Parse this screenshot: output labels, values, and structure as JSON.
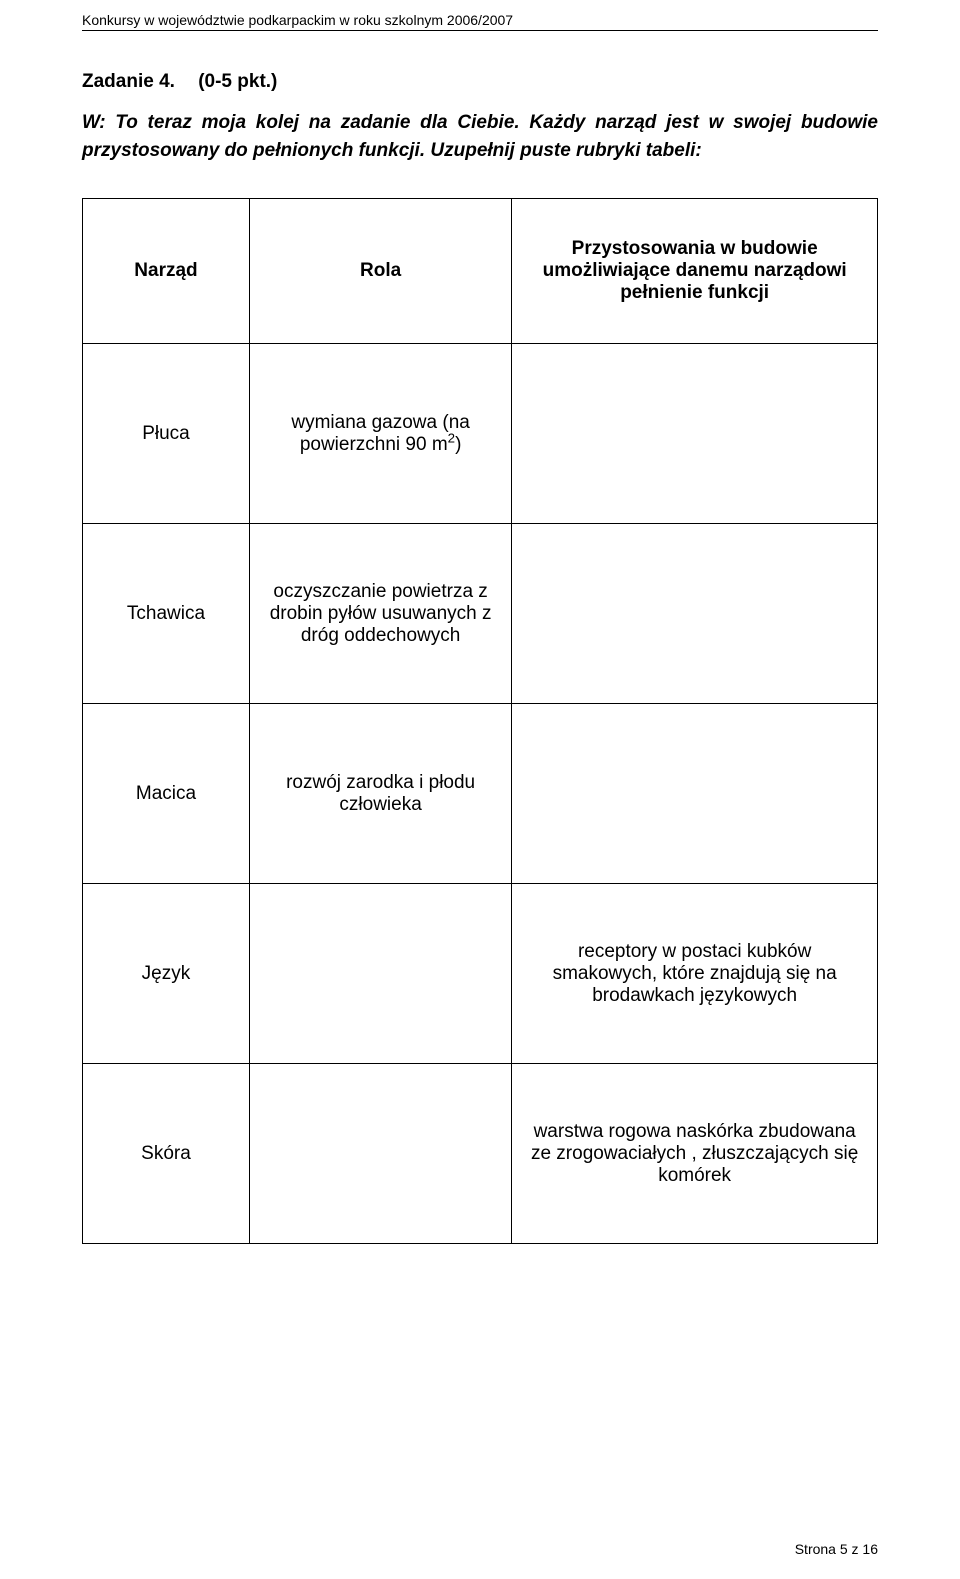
{
  "running_head": "Konkursy w województwie podkarpackim w roku szkolnym 2006/2007",
  "task": {
    "label": "Zadanie 4.",
    "points": "(0-5 pkt.)",
    "body": "W: To teraz moja kolej na zadanie dla Ciebie. Każdy narząd jest w swojej budowie przystosowany do pełnionych funkcji. Uzupełnij puste rubryki tabeli:"
  },
  "table": {
    "headers": {
      "c1": "Narząd",
      "c2": "Rola",
      "c3": "Przystosowania w budowie umożliwiające danemu narządowi pełnienie funkcji"
    },
    "rows": [
      {
        "c1": "Płuca",
        "c2_pre": "wymiana gazowa\n(na powierzchni 90 m",
        "c2_sup": "2",
        "c2_post": ")",
        "c3": ""
      },
      {
        "c1": "Tchawica",
        "c2": "oczyszczanie powietrza z drobin pyłów usuwanych z dróg oddechowych",
        "c3": ""
      },
      {
        "c1": "Macica",
        "c2": "rozwój zarodka i płodu człowieka",
        "c3": ""
      },
      {
        "c1": "Język",
        "c2": "",
        "c3": "receptory w postaci kubków smakowych, które znajdują się na brodawkach językowych"
      },
      {
        "c1": "Skóra",
        "c2": "",
        "c3": "warstwa rogowa naskórka zbudowana ze zrogowaciałych , złuszczających się komórek"
      }
    ]
  },
  "footer": "Strona 5 z 16"
}
